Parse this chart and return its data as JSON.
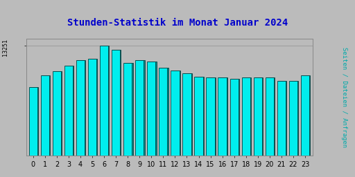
{
  "title": "Stunden-Statistik im Monat Januar 2024",
  "title_color": "#0000CC",
  "title_fontsize": 10,
  "ylabel_right": "Seiten / Dateien / Anfragen",
  "ylabel_right_color": "#00AAAA",
  "ylabel_right_fontsize": 6.5,
  "ytick_label": "13251",
  "ytick_color": "#000000",
  "ytick_fontsize": 6,
  "categories": [
    0,
    1,
    2,
    3,
    4,
    5,
    6,
    7,
    8,
    9,
    10,
    11,
    12,
    13,
    14,
    15,
    16,
    17,
    18,
    19,
    20,
    21,
    22,
    23
  ],
  "values": [
    0.62,
    0.73,
    0.77,
    0.82,
    0.87,
    0.88,
    1.0,
    0.96,
    0.84,
    0.865,
    0.855,
    0.8,
    0.775,
    0.748,
    0.718,
    0.71,
    0.712,
    0.7,
    0.71,
    0.71,
    0.71,
    0.68,
    0.678,
    0.73
  ],
  "bar_face_color": "#00EEEE",
  "bar_edge_color": "#004040",
  "bar_shadow_color": "#009090",
  "background_color": "#BBBBBB",
  "plot_bg_color": "#BBBBBB",
  "border_color": "#888888",
  "xtick_fontsize": 7,
  "figsize": [
    5.12,
    2.56
  ],
  "dpi": 100
}
